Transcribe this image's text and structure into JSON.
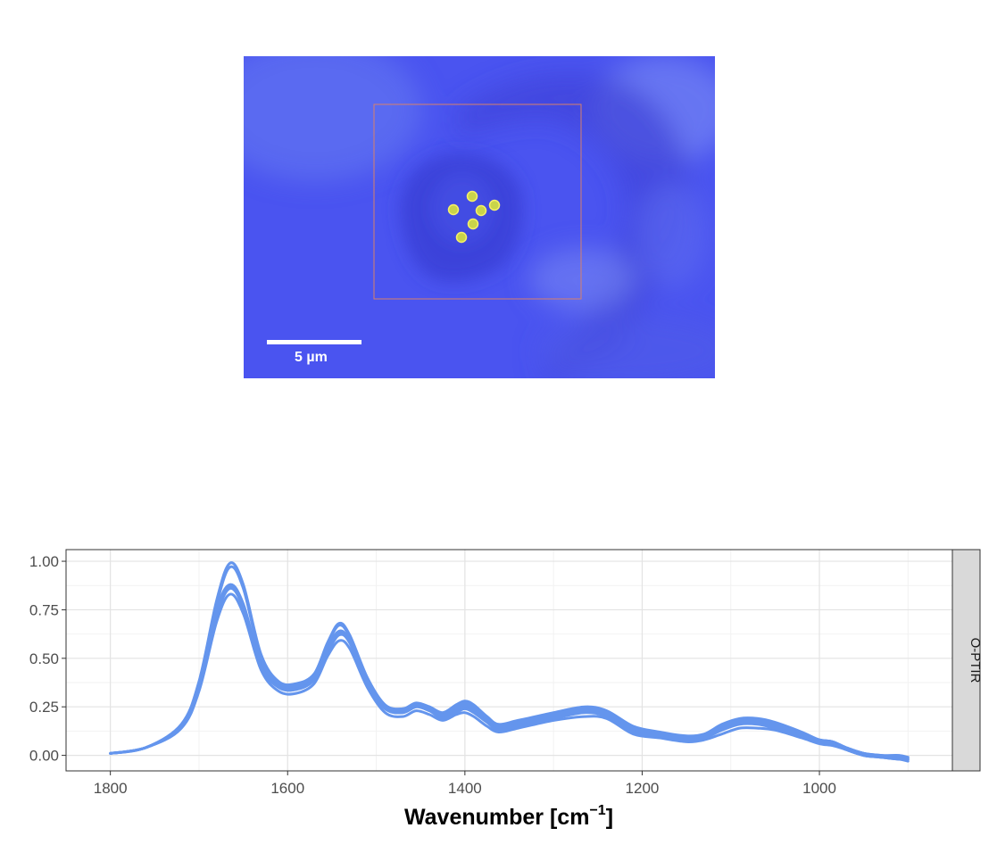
{
  "micrograph": {
    "scale_bar_label": "5 µm",
    "measurement_point_count": 6,
    "colors": {
      "background": "#4a54f0",
      "roi_box": "#d8806a",
      "marker_fill": "#c9d44a",
      "marker_stroke": "#f5f06a",
      "scale_bar": "#ffffff"
    }
  },
  "chart_data": {
    "type": "line",
    "facet_label": "O-PTIR",
    "xlabel": "Wavenumber [cm",
    "xlabel_superscript": "−1",
    "xlabel_suffix": "]",
    "ylabel": "",
    "xlim": [
      1850,
      850
    ],
    "ylim": [
      -0.08,
      1.06
    ],
    "x_reversed": true,
    "x_ticks": [
      1800,
      1600,
      1400,
      1200,
      1000
    ],
    "x_tick_labels": [
      "1800",
      "1600",
      "1400",
      "1200",
      "1000"
    ],
    "y_ticks": [
      0.0,
      0.25,
      0.5,
      0.75,
      1.0
    ],
    "y_tick_labels": [
      "0.00",
      "0.25",
      "0.50",
      "0.75",
      "1.00"
    ],
    "grid": true,
    "line_color": "#6495ed",
    "x": [
      1800,
      1760,
      1720,
      1700,
      1680,
      1665,
      1650,
      1630,
      1610,
      1590,
      1570,
      1555,
      1542,
      1530,
      1510,
      1490,
      1470,
      1455,
      1440,
      1425,
      1410,
      1400,
      1390,
      1375,
      1362,
      1340,
      1300,
      1265,
      1240,
      1210,
      1180,
      1150,
      1130,
      1110,
      1090,
      1070,
      1050,
      1020,
      1000,
      985,
      970,
      950,
      930,
      910,
      900
    ],
    "series": [
      {
        "values": [
          0.01,
          0.04,
          0.16,
          0.38,
          0.8,
          0.99,
          0.88,
          0.52,
          0.38,
          0.37,
          0.42,
          0.58,
          0.68,
          0.62,
          0.4,
          0.26,
          0.24,
          0.27,
          0.25,
          0.22,
          0.26,
          0.28,
          0.26,
          0.2,
          0.16,
          0.18,
          0.22,
          0.25,
          0.23,
          0.15,
          0.12,
          0.1,
          0.11,
          0.16,
          0.19,
          0.19,
          0.17,
          0.12,
          0.08,
          0.07,
          0.04,
          0.01,
          0.0,
          0.0,
          -0.01
        ]
      },
      {
        "values": [
          0.01,
          0.04,
          0.15,
          0.36,
          0.75,
          0.88,
          0.78,
          0.47,
          0.36,
          0.35,
          0.4,
          0.55,
          0.64,
          0.59,
          0.38,
          0.25,
          0.23,
          0.26,
          0.24,
          0.21,
          0.24,
          0.26,
          0.24,
          0.19,
          0.15,
          0.17,
          0.21,
          0.24,
          0.22,
          0.14,
          0.11,
          0.09,
          0.1,
          0.15,
          0.18,
          0.18,
          0.16,
          0.11,
          0.08,
          0.07,
          0.04,
          0.01,
          -0.01,
          -0.01,
          -0.02
        ]
      },
      {
        "values": [
          0.01,
          0.04,
          0.14,
          0.35,
          0.72,
          0.86,
          0.76,
          0.46,
          0.35,
          0.34,
          0.39,
          0.53,
          0.62,
          0.58,
          0.37,
          0.24,
          0.22,
          0.25,
          0.23,
          0.2,
          0.23,
          0.25,
          0.23,
          0.18,
          0.14,
          0.16,
          0.2,
          0.23,
          0.21,
          0.13,
          0.1,
          0.08,
          0.09,
          0.14,
          0.17,
          0.17,
          0.15,
          0.1,
          0.07,
          0.06,
          0.03,
          0.0,
          -0.01,
          -0.02,
          -0.03
        ]
      },
      {
        "values": [
          0.01,
          0.04,
          0.14,
          0.33,
          0.69,
          0.83,
          0.73,
          0.44,
          0.33,
          0.32,
          0.37,
          0.51,
          0.59,
          0.55,
          0.35,
          0.22,
          0.2,
          0.23,
          0.21,
          0.18,
          0.21,
          0.22,
          0.2,
          0.15,
          0.12,
          0.14,
          0.18,
          0.2,
          0.19,
          0.11,
          0.09,
          0.07,
          0.08,
          0.11,
          0.14,
          0.14,
          0.13,
          0.09,
          0.06,
          0.05,
          0.03,
          0.0,
          -0.01,
          -0.02,
          -0.02
        ]
      },
      {
        "values": [
          0.01,
          0.04,
          0.15,
          0.37,
          0.78,
          0.97,
          0.86,
          0.5,
          0.37,
          0.36,
          0.41,
          0.57,
          0.67,
          0.61,
          0.39,
          0.25,
          0.24,
          0.26,
          0.25,
          0.21,
          0.25,
          0.27,
          0.25,
          0.19,
          0.15,
          0.17,
          0.21,
          0.24,
          0.22,
          0.14,
          0.11,
          0.09,
          0.1,
          0.15,
          0.18,
          0.18,
          0.16,
          0.11,
          0.08,
          0.07,
          0.04,
          0.01,
          0.0,
          -0.01,
          -0.01
        ]
      },
      {
        "values": [
          0.01,
          0.04,
          0.15,
          0.35,
          0.74,
          0.87,
          0.77,
          0.46,
          0.35,
          0.34,
          0.39,
          0.54,
          0.63,
          0.58,
          0.37,
          0.24,
          0.22,
          0.25,
          0.23,
          0.19,
          0.22,
          0.24,
          0.22,
          0.17,
          0.13,
          0.15,
          0.19,
          0.22,
          0.2,
          0.12,
          0.1,
          0.08,
          0.09,
          0.13,
          0.16,
          0.16,
          0.14,
          0.1,
          0.07,
          0.06,
          0.03,
          0.0,
          -0.01,
          -0.02,
          -0.02
        ]
      }
    ]
  }
}
